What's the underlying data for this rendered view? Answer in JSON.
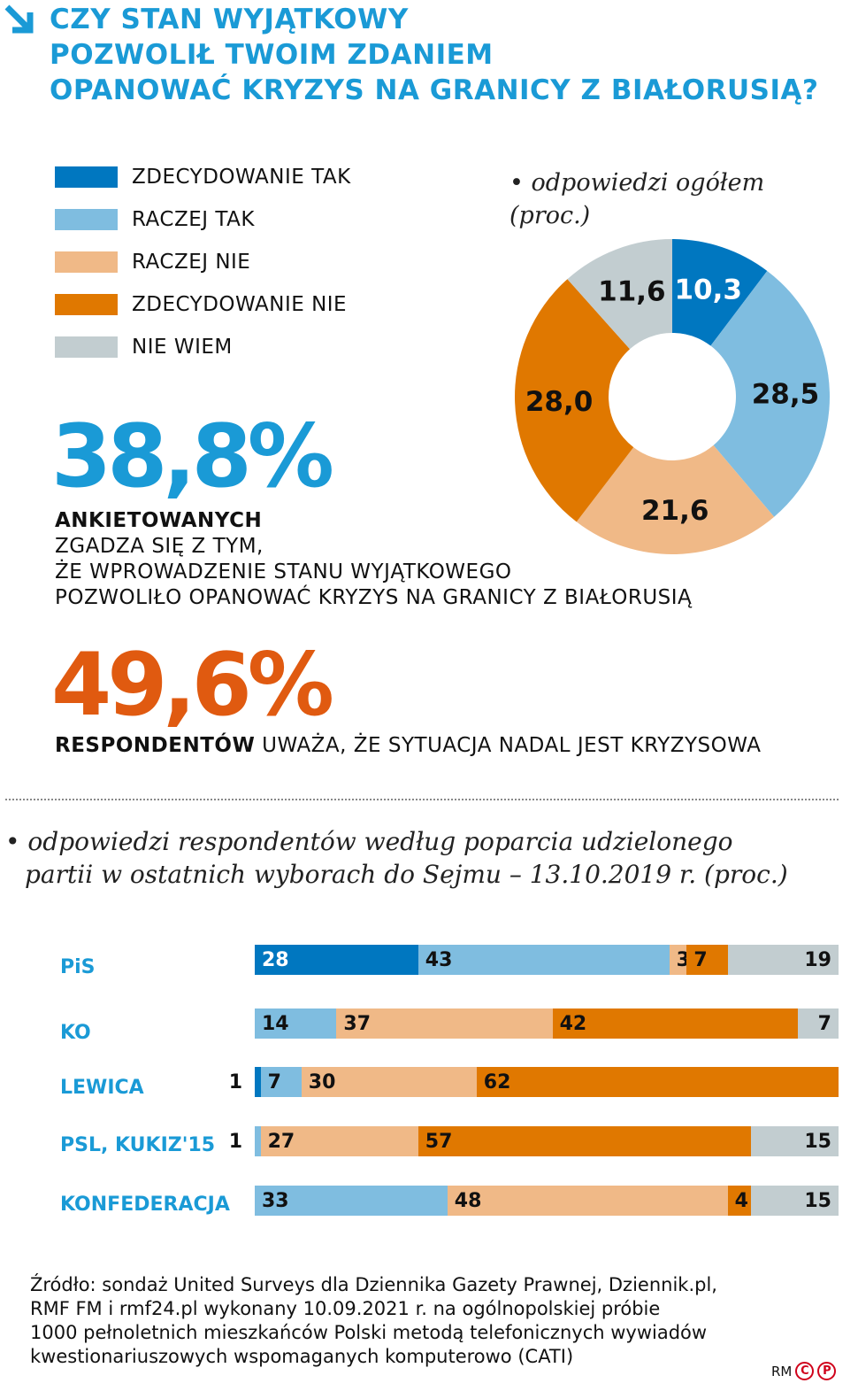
{
  "title": [
    "CZY STAN WYJĄTKOWY",
    "POZWOLIŁ TWOIM ZDANIEM",
    "OPANOWAĆ KRYZYS NA GRANICY Z BIAŁORUSIĄ?"
  ],
  "colors": {
    "zdecydowanie_tak": "#0077c0",
    "raczej_tak": "#7fbde0",
    "raczej_nie": "#f0b987",
    "zdecydowanie_nie": "#e07800",
    "nie_wiem": "#c2cdd0",
    "accent": "#1a9ad6",
    "highlight": "#e05a10"
  },
  "legend": [
    "ZDECYDOWANIE TAK",
    "RACZEJ TAK",
    "RACZEJ NIE",
    "ZDECYDOWANIE NIE",
    "NIE WIEM"
  ],
  "stat1": {
    "value": "38,8%",
    "bold": "ANKIETOWANYCH",
    "lines": [
      "ZGADZA SIĘ Z TYM,",
      "ŻE WPROWADZENIE STANU WYJĄTKOWEGO",
      "POZWOLIŁO OPANOWAĆ KRYZYS NA GRANICY Z BIAŁORUSIĄ"
    ]
  },
  "stat2": {
    "value": "49,6%",
    "bold": "RESPONDENTÓW",
    "text": " UWAŻA, ŻE SYTUACJA NADAL JEST KRYZYSOWA"
  },
  "source": [
    "Źródło: sondaż United Surveys dla Dziennika Gazety Prawnej, Dziennik.pl,",
    "RMF FM i rmf24.pl wykonany 10.09.2021 r. na ogólnopolskiej próbie",
    "1000 pełnoletnich mieszkańców Polski metodą telefonicznych wywiadów",
    "kwestionariuszowych wspomaganych komputerowo (CATI)"
  ],
  "logo": "RM©℗",
  "chart_data": [
    {
      "type": "pie",
      "donut": true,
      "title": "• odpowiedzi ogółem (proc.)",
      "categories": [
        "ZDECYDOWANIE TAK",
        "RACZEJ TAK",
        "RACZEJ NIE",
        "ZDECYDOWANIE NIE",
        "NIE WIEM"
      ],
      "values": [
        10.3,
        28.5,
        21.6,
        28.0,
        11.6
      ],
      "labels": [
        "10,3",
        "28,5",
        "21,6",
        "28,0",
        "11,6"
      ]
    },
    {
      "type": "bar",
      "stacked": true,
      "orientation": "horizontal",
      "title": "• odpowiedzi respondentów według poparcia udzielonego partii w ostatnich wyborach do Sejmu – 13.10.2019 r. (proc.)",
      "categories": [
        "PiS",
        "KO",
        "LEWICA",
        "PSL, KUKIZ'15",
        "KONFEDERACJA"
      ],
      "series": [
        {
          "name": "ZDECYDOWANIE TAK",
          "values": [
            28,
            0,
            1,
            0,
            0
          ]
        },
        {
          "name": "RACZEJ TAK",
          "values": [
            43,
            14,
            7,
            1,
            33
          ]
        },
        {
          "name": "RACZEJ NIE",
          "values": [
            3,
            37,
            30,
            27,
            48
          ]
        },
        {
          "name": "ZDECYDOWANIE NIE",
          "values": [
            7,
            42,
            62,
            57,
            4
          ]
        },
        {
          "name": "NIE WIEM",
          "values": [
            19,
            7,
            0,
            15,
            15
          ]
        }
      ],
      "xlim": [
        0,
        100
      ]
    }
  ]
}
